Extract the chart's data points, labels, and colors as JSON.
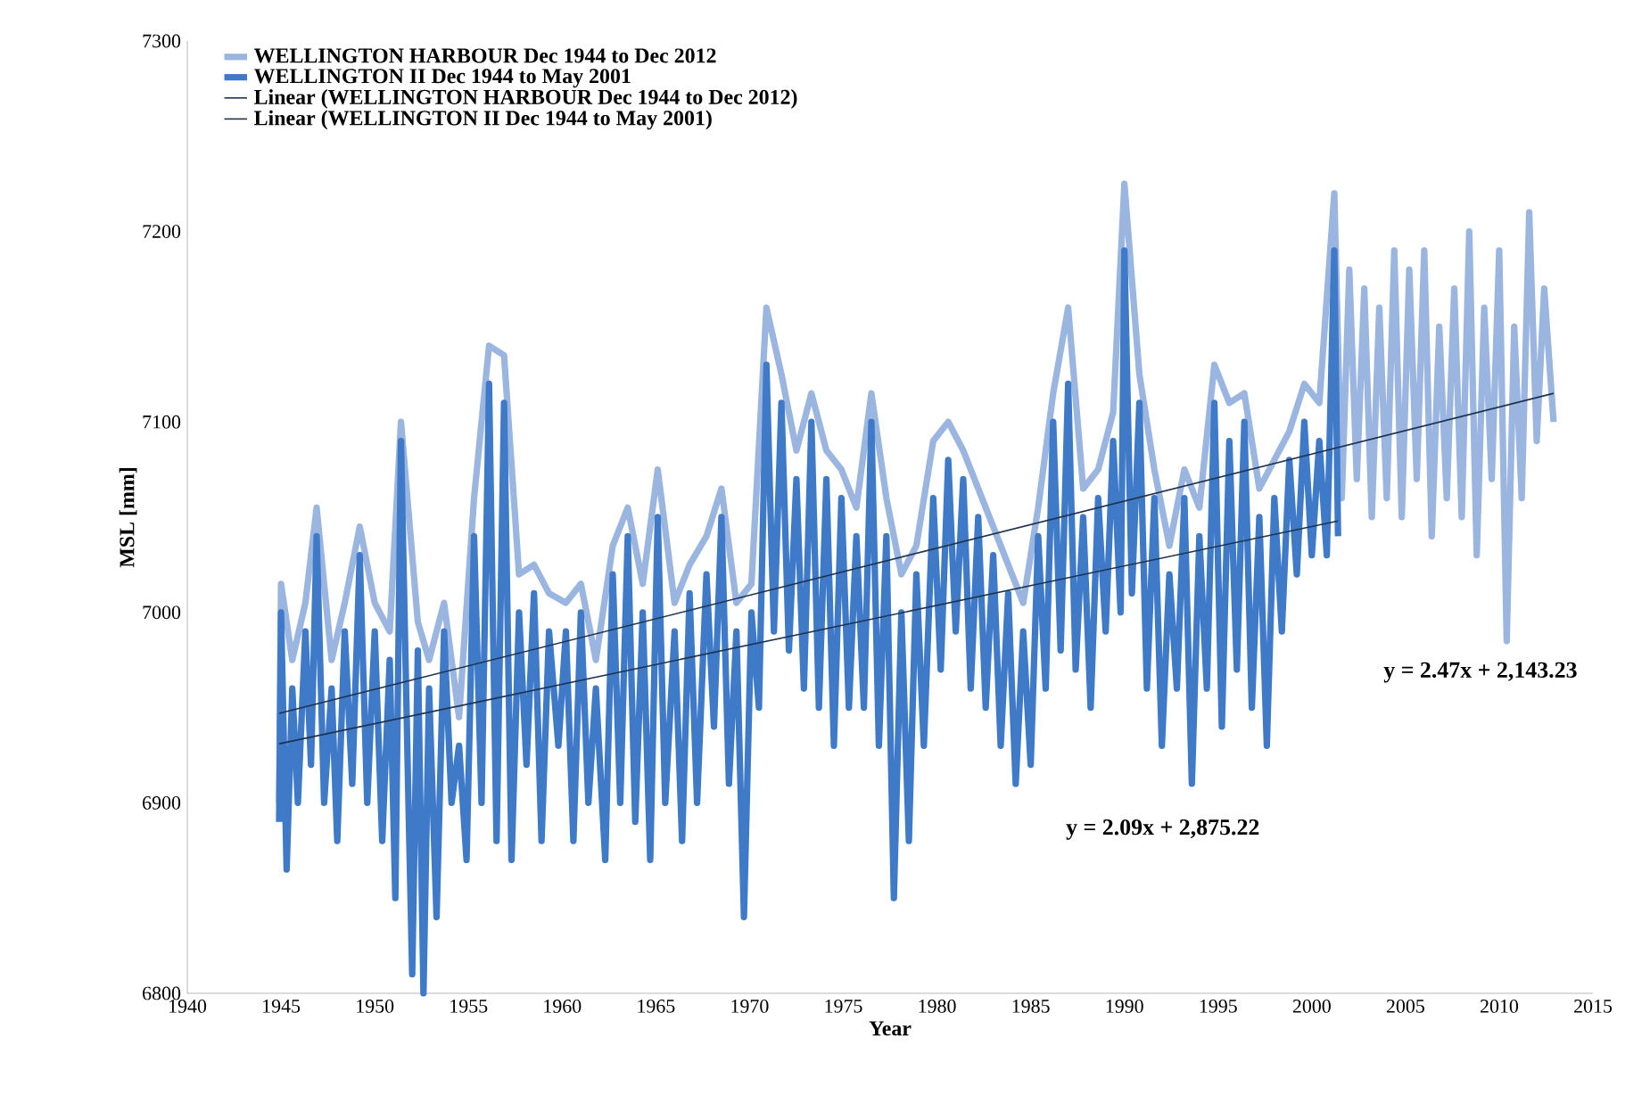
{
  "chart_data": {
    "type": "line",
    "xlabel": "Year",
    "ylabel": "MSL [mm]",
    "xlim": [
      1940,
      2015
    ],
    "xticks": [
      1940,
      1945,
      1950,
      1955,
      1960,
      1965,
      1970,
      1975,
      1980,
      1985,
      1990,
      1995,
      2000,
      2005,
      2010,
      2015
    ],
    "ylim": [
      6800,
      7300
    ],
    "yticks": [
      6800,
      6900,
      7000,
      7100,
      7200,
      7300
    ],
    "legend": "top left",
    "marker": "none",
    "line_style": "solid",
    "series": [
      {
        "name": "WELLINGTON HARBOUR Dec 1944 to Dec 2012",
        "color": "#9ab5df",
        "x": [
          1944.9,
          1945.0,
          1945.6,
          1946.3,
          1946.9,
          1947.7,
          1948.4,
          1949.2,
          1950.0,
          1950.8,
          1951.4,
          1952.3,
          1952.9,
          1953.7,
          1954.5,
          1955.3,
          1956.1,
          1956.9,
          1957.7,
          1958.5,
          1959.3,
          1960.2,
          1961.0,
          1961.8,
          1962.7,
          1963.5,
          1964.3,
          1965.1,
          1966.0,
          1966.8,
          1967.7,
          1968.5,
          1969.3,
          1970.1,
          1970.9,
          1971.7,
          1972.5,
          1973.3,
          1974.1,
          1974.9,
          1975.7,
          1976.5,
          1977.3,
          1978.1,
          1978.9,
          1979.8,
          1980.6,
          1981.4,
          1982.2,
          1983.0,
          1983.8,
          1984.6,
          1985.4,
          1986.2,
          1987.0,
          1987.8,
          1988.6,
          1989.4,
          1990.0,
          1990.8,
          1991.6,
          1992.4,
          1993.2,
          1994.0,
          1994.8,
          1995.6,
          1996.4,
          1997.2,
          1998.0,
          1998.8,
          1999.6,
          2000.4,
          2001.2,
          2001.6,
          2002.0,
          2002.4,
          2002.8,
          2003.2,
          2003.6,
          2004.0,
          2004.4,
          2004.8,
          2005.2,
          2005.6,
          2006.0,
          2006.4,
          2006.8,
          2007.2,
          2007.6,
          2008.0,
          2008.4,
          2008.8,
          2009.2,
          2009.6,
          2010.0,
          2010.4,
          2010.8,
          2011.2,
          2011.6,
          2012.0,
          2012.4,
          2012.9
        ],
        "values": [
          6900,
          7015,
          6975,
          7005,
          7055,
          6975,
          7005,
          7045,
          7005,
          6990,
          7100,
          6995,
          6975,
          7005,
          6945,
          7060,
          7140,
          7135,
          7020,
          7025,
          7010,
          7005,
          7015,
          6975,
          7035,
          7055,
          7015,
          7075,
          7005,
          7025,
          7040,
          7065,
          7005,
          7015,
          7160,
          7125,
          7085,
          7115,
          7085,
          7075,
          7055,
          7115,
          7060,
          7020,
          7035,
          7090,
          7100,
          7085,
          7065,
          7045,
          7025,
          7005,
          7055,
          7115,
          7160,
          7065,
          7075,
          7105,
          7225,
          7125,
          7075,
          7035,
          7075,
          7055,
          7130,
          7110,
          7115,
          7065,
          7080,
          7095,
          7120,
          7110,
          7220,
          7060,
          7180,
          7070,
          7170,
          7050,
          7160,
          7060,
          7190,
          7050,
          7180,
          7070,
          7190,
          7040,
          7150,
          7060,
          7170,
          7050,
          7200,
          7030,
          7160,
          7070,
          7190,
          6985,
          7150,
          7060,
          7210,
          7090,
          7170,
          7100
        ]
      },
      {
        "name": "WELLINGTON II Dec 1944 to May 2001",
        "color": "#3e7ac8",
        "x": [
          1944.9,
          1945.0,
          1945.3,
          1945.6,
          1945.9,
          1946.3,
          1946.6,
          1946.9,
          1947.3,
          1947.7,
          1948.0,
          1948.4,
          1948.8,
          1949.2,
          1949.6,
          1950.0,
          1950.4,
          1950.8,
          1951.1,
          1951.4,
          1951.8,
          1952.0,
          1952.3,
          1952.6,
          1952.9,
          1953.3,
          1953.7,
          1954.1,
          1954.5,
          1954.9,
          1955.3,
          1955.7,
          1956.1,
          1956.5,
          1956.9,
          1957.3,
          1957.7,
          1958.1,
          1958.5,
          1958.9,
          1959.3,
          1959.8,
          1960.2,
          1960.6,
          1961.0,
          1961.4,
          1961.8,
          1962.3,
          1962.7,
          1963.1,
          1963.5,
          1963.9,
          1964.3,
          1964.7,
          1965.1,
          1965.5,
          1966.0,
          1966.4,
          1966.8,
          1967.2,
          1967.7,
          1968.1,
          1968.5,
          1968.9,
          1969.3,
          1969.7,
          1970.1,
          1970.5,
          1970.9,
          1971.3,
          1971.7,
          1972.1,
          1972.5,
          1972.9,
          1973.3,
          1973.7,
          1974.1,
          1974.5,
          1974.9,
          1975.3,
          1975.7,
          1976.1,
          1976.5,
          1976.9,
          1977.3,
          1977.7,
          1978.1,
          1978.5,
          1978.9,
          1979.3,
          1979.8,
          1980.2,
          1980.6,
          1981.0,
          1981.4,
          1981.8,
          1982.2,
          1982.6,
          1983.0,
          1983.4,
          1983.8,
          1984.2,
          1984.6,
          1985.0,
          1985.4,
          1985.8,
          1986.2,
          1986.6,
          1987.0,
          1987.4,
          1987.8,
          1988.2,
          1988.6,
          1989.0,
          1989.4,
          1989.8,
          1990.0,
          1990.4,
          1990.8,
          1991.2,
          1991.6,
          1992.0,
          1992.4,
          1992.8,
          1993.2,
          1993.6,
          1994.0,
          1994.4,
          1994.8,
          1995.2,
          1995.6,
          1996.0,
          1996.4,
          1996.8,
          1997.2,
          1997.6,
          1998.0,
          1998.4,
          1998.8,
          1999.2,
          1999.6,
          2000.0,
          2000.4,
          2000.8,
          2001.2,
          2001.4
        ],
        "values": [
          6890,
          7000,
          6865,
          6960,
          6900,
          6990,
          6920,
          7040,
          6900,
          6960,
          6880,
          6990,
          6910,
          7030,
          6900,
          6990,
          6880,
          6975,
          6850,
          7090,
          6900,
          6810,
          6980,
          6800,
          6960,
          6840,
          6990,
          6900,
          6930,
          6870,
          7040,
          6900,
          7120,
          6880,
          7110,
          6870,
          7000,
          6920,
          7010,
          6880,
          6990,
          6930,
          6990,
          6880,
          7000,
          6900,
          6960,
          6870,
          7020,
          6900,
          7040,
          6890,
          7000,
          6870,
          7050,
          6900,
          6990,
          6880,
          7010,
          6900,
          7020,
          6940,
          7050,
          6910,
          6990,
          6840,
          7000,
          6950,
          7130,
          6990,
          7110,
          6980,
          7070,
          6960,
          7100,
          6950,
          7070,
          6930,
          7060,
          6950,
          7040,
          6950,
          7100,
          6930,
          7040,
          6850,
          7000,
          6880,
          7020,
          6930,
          7060,
          6970,
          7080,
          6990,
          7070,
          6960,
          7050,
          6950,
          7030,
          6930,
          7010,
          6910,
          6990,
          6920,
          7040,
          6960,
          7100,
          6980,
          7120,
          6970,
          7050,
          6950,
          7060,
          6990,
          7090,
          7000,
          7190,
          7010,
          7110,
          6960,
          7060,
          6930,
          7020,
          6960,
          7060,
          6910,
          7040,
          6960,
          7110,
          6940,
          7090,
          6970,
          7100,
          6950,
          7050,
          6930,
          7060,
          6990,
          7080,
          7020,
          7100,
          7030,
          7090,
          7030,
          7190,
          7040
        ]
      },
      {
        "name": "Linear (WELLINGTON HARBOUR Dec 1944 to Dec 2012)",
        "color": "#1f3350",
        "x": [
          1944.9,
          2012.9
        ],
        "values": [
          6947,
          7115
        ]
      },
      {
        "name": "Linear (WELLINGTON II Dec 1944 to May 2001)",
        "color": "#1f3350",
        "x": [
          1944.9,
          2001.4
        ],
        "values": [
          6931,
          7048
        ]
      }
    ],
    "annotations": [
      "y = 2.47x + 2,143.23",
      "y = 2.09x + 2,875.22"
    ]
  }
}
